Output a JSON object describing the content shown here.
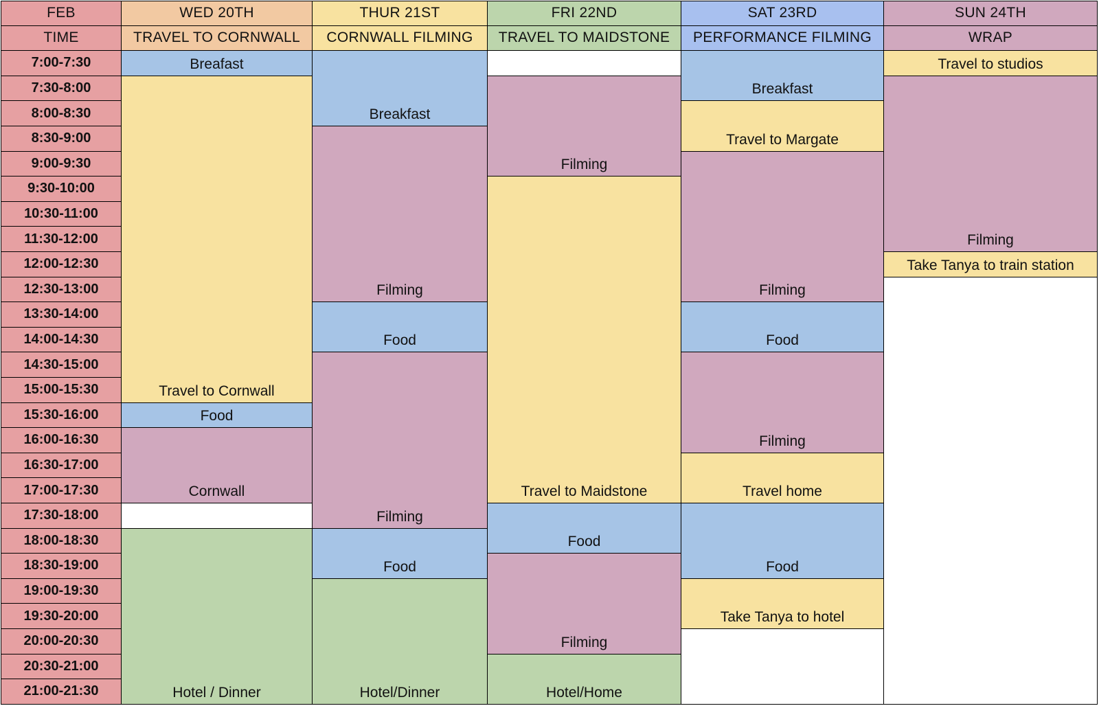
{
  "colors": {
    "time": "#e6a0a2",
    "travel": "#f8e2a0",
    "meal": "#a6c4e6",
    "filming": "#d0a8be",
    "lodging": "#bcd5ac",
    "empty": "#ffffff",
    "wed_header": "#f2c9a2",
    "thu_header": "#f8e2a0",
    "fri_header": "#bcd5ac",
    "sat_header": "#a8c0ef",
    "sun_header": "#d0a8be"
  },
  "header": {
    "month": "FEB",
    "time_label": "TIME",
    "days": [
      {
        "date": "WED 20TH",
        "theme": "TRAVEL TO CORNWALL",
        "color": "wed_header"
      },
      {
        "date": "THUR 21ST",
        "theme": "CORNWALL FILMING",
        "color": "thu_header"
      },
      {
        "date": "FRI 22ND",
        "theme": "TRAVEL TO MAIDSTONE",
        "color": "fri_header"
      },
      {
        "date": "SAT 23RD",
        "theme": "PERFORMANCE FILMING",
        "color": "sat_header"
      },
      {
        "date": "SUN 24TH",
        "theme": "WRAP",
        "color": "sun_header"
      }
    ]
  },
  "time_slots": [
    "7:00-7:30",
    "7:30-8:00",
    "8:00-8:30",
    "8:30-9:00",
    "9:00-9:30",
    "9:30-10:00",
    "10:30-11:00",
    "11:30-12:00",
    "12:00-12:30",
    "12:30-13:00",
    "13:30-14:00",
    "14:00-14:30",
    "14:30-15:00",
    "15:00-15:30",
    "15:30-16:00",
    "16:00-16:30",
    "16:30-17:00",
    "17:00-17:30",
    "17:30-18:00",
    "18:00-18:30",
    "18:30-19:00",
    "19:00-19:30",
    "19:30-20:00",
    "20:00-20:30",
    "20:30-21:00",
    "21:00-21:30"
  ],
  "schedule": [
    [
      {
        "label": "Breafast",
        "slots": 1,
        "category": "meal"
      },
      {
        "label": "Travel to Cornwall",
        "slots": 13,
        "category": "travel"
      },
      {
        "label": "Food",
        "slots": 1,
        "category": "meal"
      },
      {
        "label": "Cornwall",
        "slots": 3,
        "category": "filming"
      },
      {
        "label": "",
        "slots": 1,
        "category": "empty"
      },
      {
        "label": "Hotel / Dinner",
        "slots": 7,
        "category": "lodging"
      }
    ],
    [
      {
        "label": "Breakfast",
        "slots": 3,
        "category": "meal"
      },
      {
        "label": "Filming",
        "slots": 7,
        "category": "filming"
      },
      {
        "label": "Food",
        "slots": 2,
        "category": "meal"
      },
      {
        "label": "Filming",
        "slots": 7,
        "category": "filming"
      },
      {
        "label": "Food",
        "slots": 2,
        "category": "meal"
      },
      {
        "label": "Hotel/Dinner",
        "slots": 5,
        "category": "lodging"
      }
    ],
    [
      {
        "label": "",
        "slots": 1,
        "category": "empty"
      },
      {
        "label": "Filming",
        "slots": 4,
        "category": "filming"
      },
      {
        "label": "Travel to Maidstone",
        "slots": 13,
        "category": "travel"
      },
      {
        "label": "Food",
        "slots": 2,
        "category": "meal"
      },
      {
        "label": "Filming",
        "slots": 4,
        "category": "filming"
      },
      {
        "label": "Hotel/Home",
        "slots": 2,
        "category": "lodging"
      }
    ],
    [
      {
        "label": "Breakfast",
        "slots": 2,
        "category": "meal"
      },
      {
        "label": "Travel to Margate",
        "slots": 2,
        "category": "travel"
      },
      {
        "label": "Filming",
        "slots": 6,
        "category": "filming"
      },
      {
        "label": "Food",
        "slots": 2,
        "category": "meal"
      },
      {
        "label": "Filming",
        "slots": 4,
        "category": "filming"
      },
      {
        "label": "Travel home",
        "slots": 2,
        "category": "travel"
      },
      {
        "label": "Food",
        "slots": 3,
        "category": "meal"
      },
      {
        "label": "Take Tanya to hotel",
        "slots": 2,
        "category": "travel"
      },
      {
        "label": "",
        "slots": 3,
        "category": "empty"
      }
    ],
    [
      {
        "label": "Travel to studios",
        "slots": 1,
        "category": "travel"
      },
      {
        "label": "Filming",
        "slots": 7,
        "category": "filming"
      },
      {
        "label": "Take Tanya to train station",
        "slots": 1,
        "category": "travel"
      },
      {
        "label": "",
        "slots": 17,
        "category": "empty"
      }
    ]
  ]
}
